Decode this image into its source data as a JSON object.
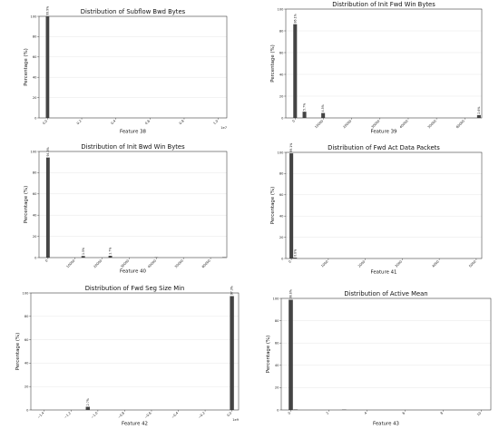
{
  "chart_data": [
    {
      "type": "bar",
      "title": "Distribution of Subflow Bwd Bytes",
      "xlabel": "Feature 38",
      "ylabel": "Percentage (%)",
      "ylim": [
        0,
        100
      ],
      "yticks": [
        0,
        20,
        40,
        60,
        80,
        100
      ],
      "xlim": [
        -0.05,
        1.05
      ],
      "xticks": [
        0.0,
        0.2,
        0.4,
        0.6,
        0.8,
        1.0
      ],
      "xtick_labels": [
        "0.0",
        "0.2",
        "0.4",
        "0.6",
        "0.8",
        "1.0"
      ],
      "x_offset_label": "1e7",
      "grid": true,
      "bars": [
        {
          "x": 0.0,
          "width": 0.02,
          "value": 99.9,
          "label": "99.9%"
        }
      ]
    },
    {
      "type": "bar",
      "title": "Distribution of Init Fwd Win Bytes",
      "xlabel": "Feature 39",
      "ylabel": "Percentage (%)",
      "ylim": [
        0,
        100
      ],
      "yticks": [
        0,
        20,
        40,
        60,
        80,
        100
      ],
      "xlim": [
        -3300,
        66000
      ],
      "xticks": [
        0,
        10000,
        20000,
        30000,
        40000,
        50000,
        60000
      ],
      "xtick_labels": [
        "0",
        "10000",
        "20000",
        "30000",
        "40000",
        "50000",
        "60000"
      ],
      "x_offset_label": "",
      "grid": true,
      "bars": [
        {
          "x": 0,
          "width": 1300,
          "value": 86.1,
          "label": "86.1%"
        },
        {
          "x": 3300,
          "width": 1300,
          "value": 5.7,
          "label": "5.7%"
        },
        {
          "x": 9900,
          "width": 1300,
          "value": 4.5,
          "label": "4.5%"
        },
        {
          "x": 65000,
          "width": 1300,
          "value": 2.6,
          "label": "2.6%"
        }
      ]
    },
    {
      "type": "bar",
      "title": "Distribution of Init Bwd Win Bytes",
      "xlabel": "Feature 40",
      "ylabel": "Percentage (%)",
      "ylim": [
        0,
        100
      ],
      "yticks": [
        0,
        20,
        40,
        60,
        80,
        100
      ],
      "xlim": [
        -3300,
        66000
      ],
      "xticks": [
        0,
        10000,
        20000,
        30000,
        40000,
        50000,
        60000
      ],
      "xtick_labels": [
        "0",
        "10000",
        "20000",
        "30000",
        "40000",
        "50000",
        "60000"
      ],
      "x_offset_label": "",
      "grid": true,
      "bars": [
        {
          "x": 0,
          "width": 1300,
          "value": 94.3,
          "label": "94.3%"
        },
        {
          "x": 13000,
          "width": 1300,
          "value": 1.5,
          "label": "1.5%"
        },
        {
          "x": 23000,
          "width": 1300,
          "value": 1.7,
          "label": "1.7%"
        },
        {
          "x": 40000,
          "width": 1300,
          "value": 0.3,
          "label": ""
        },
        {
          "x": 65000,
          "width": 1300,
          "value": 0.4,
          "label": ""
        }
      ]
    },
    {
      "type": "bar",
      "title": "Distribution of Fwd Act Data Packets",
      "xlabel": "Feature 41",
      "ylabel": "Percentage (%)",
      "ylim": [
        0,
        100
      ],
      "yticks": [
        0,
        20,
        40,
        60,
        80,
        100
      ],
      "xlim": [
        -150,
        5150
      ],
      "xticks": [
        0,
        1000,
        2000,
        3000,
        4000,
        5000
      ],
      "xtick_labels": [
        "0",
        "1000",
        "2000",
        "3000",
        "4000",
        "5000"
      ],
      "x_offset_label": "",
      "grid": true,
      "bars": [
        {
          "x": 0,
          "width": 100,
          "value": 99.1,
          "label": "99.1%"
        },
        {
          "x": 100,
          "width": 100,
          "value": 0.8,
          "label": "0.8%"
        }
      ]
    },
    {
      "type": "bar",
      "title": "Distribution of Fwd Seg Size Min",
      "xlabel": "Feature 42",
      "ylabel": "Percentage (%)",
      "ylim": [
        0,
        100
      ],
      "yticks": [
        0,
        20,
        40,
        60,
        80,
        100
      ],
      "xlim": [
        -1.5,
        0.05
      ],
      "xticks": [
        -1.4,
        -1.2,
        -1.0,
        -0.8,
        -0.6,
        -0.4,
        -0.2,
        0.0
      ],
      "xtick_labels": [
        "-1.4",
        "-1.2",
        "-1.0",
        "-0.8",
        "-0.6",
        "-0.4",
        "-0.2",
        "0.0"
      ],
      "x_offset_label": "1e9",
      "grid": true,
      "bars": [
        {
          "x": -1.075,
          "width": 0.03,
          "value": 2.7,
          "label": "2.7%"
        },
        {
          "x": 0.0,
          "width": 0.03,
          "value": 97.3,
          "label": "97.3%"
        }
      ]
    },
    {
      "type": "bar",
      "title": "Distribution of Active Mean",
      "xlabel": "Feature 43",
      "ylabel": "Percentage (%)",
      "ylim": [
        0,
        100
      ],
      "yticks": [
        0,
        20,
        40,
        60,
        80,
        100
      ],
      "xlim": [
        -0.5,
        10.5
      ],
      "xticks": [
        0,
        2,
        4,
        6,
        8,
        10
      ],
      "xtick_labels": [
        "0",
        "2",
        "4",
        "6",
        "8",
        "10"
      ],
      "x_offset_label": "",
      "grid": true,
      "bars": [
        {
          "x": 0.0,
          "width": 0.22,
          "value": 98.8,
          "label": "98.8%"
        },
        {
          "x": 0.25,
          "width": 0.22,
          "value": 0.4,
          "label": ""
        },
        {
          "x": 2.8,
          "width": 0.22,
          "value": 0.3,
          "label": ""
        }
      ]
    }
  ]
}
